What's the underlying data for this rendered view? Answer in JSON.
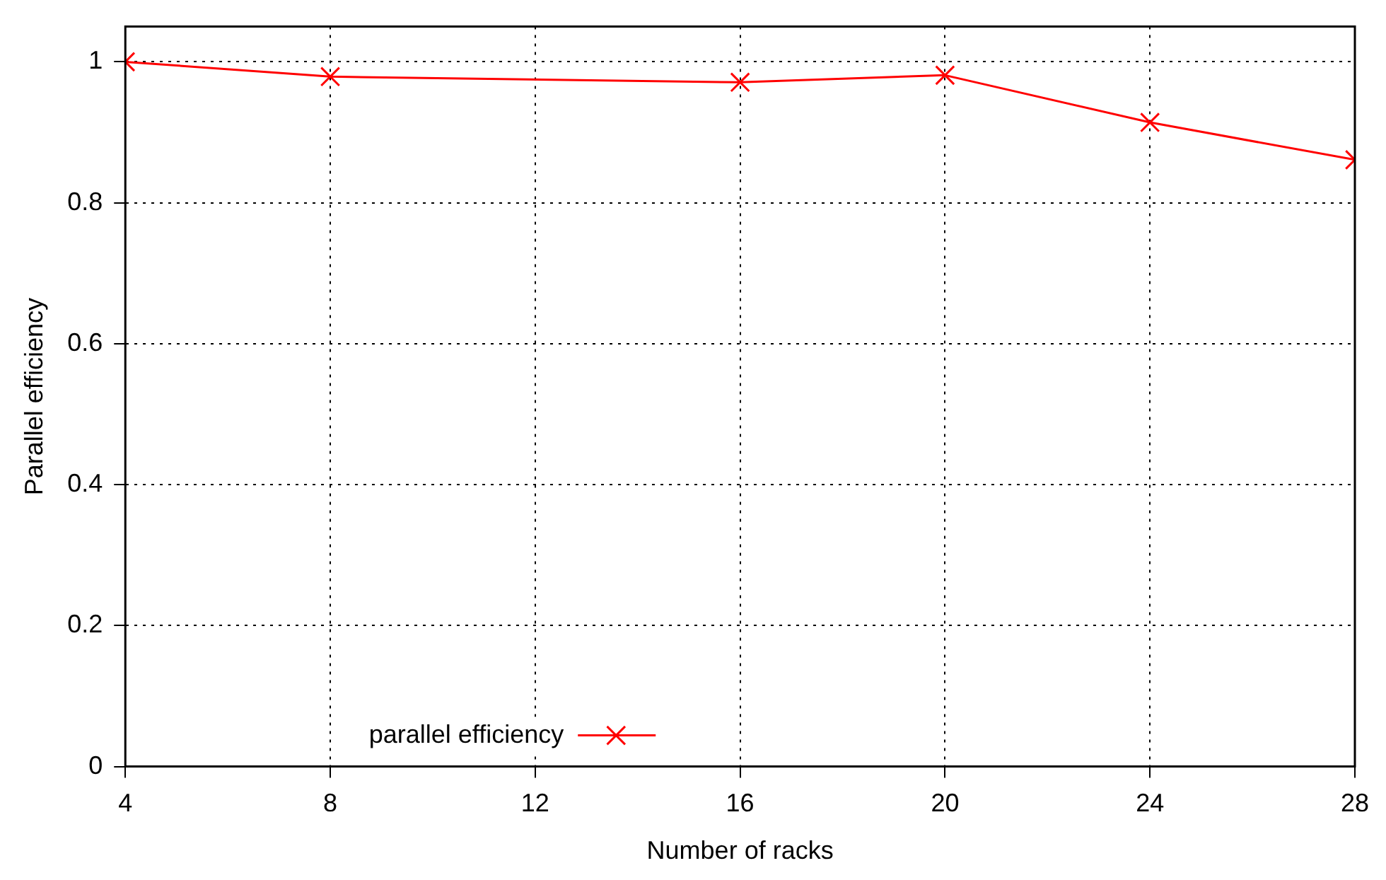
{
  "chart_data": {
    "type": "line",
    "xlabel": "Number of racks",
    "ylabel": "Parallel efficiency",
    "x": [
      4,
      8,
      16,
      20,
      24,
      28
    ],
    "series": [
      {
        "name": "parallel efficiency",
        "color": "#ff0000",
        "values": [
          1.0,
          0.979,
          0.971,
          0.981,
          0.914,
          0.861
        ]
      }
    ],
    "xlim": [
      4,
      28
    ],
    "xticks": [
      4,
      8,
      12,
      16,
      20,
      24,
      28
    ],
    "ylim": [
      0,
      1.05
    ],
    "yticks": [
      0,
      0.2,
      0.4,
      0.6,
      0.8,
      1
    ],
    "grid": true,
    "legend": "bottom",
    "marker": "cross",
    "line_style": "solid"
  }
}
